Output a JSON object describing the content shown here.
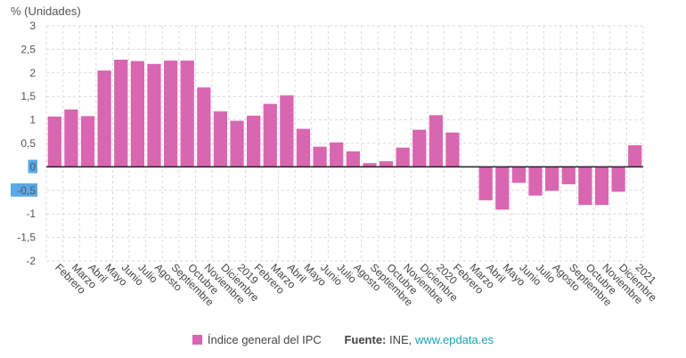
{
  "chart_data": {
    "type": "bar",
    "ylabel": "% (Unidades)",
    "ylim": [
      -2,
      3
    ],
    "yticks": [
      "3",
      "2,5",
      "2",
      "1,5",
      "1",
      "0,5",
      "0",
      "-0,5",
      "-1",
      "-1,5",
      "-2"
    ],
    "ytick_values": [
      3,
      2.5,
      2,
      1.5,
      1,
      0.5,
      0,
      -0.5,
      -1,
      -1.5,
      -2
    ],
    "highlight_ticks": [
      "0",
      "-0,5"
    ],
    "categories": [
      "Febrero",
      "Marzo",
      "Abril",
      "Mayo",
      "Junio",
      "Julio",
      "Agosto",
      "Septiembre",
      "Octubre",
      "Noviembre",
      "Diciembre",
      "2019",
      "Febrero",
      "Marzo",
      "Abril",
      "Mayo",
      "Junio",
      "Julio",
      "Agosto",
      "Septiembre",
      "Octubre",
      "Noviembre",
      "Diciembre",
      "2020",
      "Febrero",
      "Marzo",
      "Abril",
      "Mayo",
      "Junio",
      "Julio",
      "Agosto",
      "Septiembre",
      "Octubre",
      "Noviembre",
      "Diciembre",
      "2021"
    ],
    "series": [
      {
        "name": "Índice general del IPC",
        "color": "#d966b0",
        "values": [
          1.07,
          1.22,
          1.08,
          2.05,
          2.28,
          2.25,
          2.19,
          2.26,
          2.26,
          1.69,
          1.18,
          0.98,
          1.09,
          1.34,
          1.52,
          0.81,
          0.43,
          0.52,
          0.33,
          0.08,
          0.12,
          0.41,
          0.79,
          1.1,
          0.73,
          0.01,
          -0.71,
          -0.91,
          -0.34,
          -0.61,
          -0.51,
          -0.37,
          -0.81,
          -0.81,
          -0.53,
          0.46
        ]
      }
    ],
    "grid": true,
    "legend_position": "bottom-center"
  },
  "legend": {
    "series_label": "Índice general del IPC",
    "source_label": "Fuente:",
    "source_name": "INE,",
    "source_link": "www.epdata.es"
  }
}
